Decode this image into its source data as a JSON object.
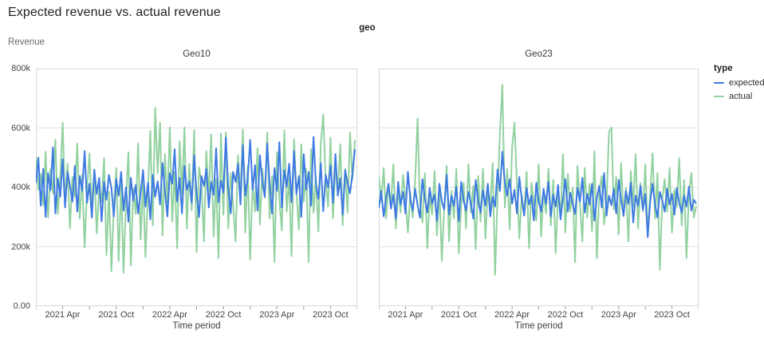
{
  "title": "Expected revenue vs. actual revenue",
  "facet_label": "geo",
  "y_axis": {
    "title": "Revenue",
    "tick_labels": [
      "0.00",
      "200k",
      "400k",
      "600k",
      "800k"
    ],
    "tick_values": [
      0,
      200,
      400,
      600,
      800
    ],
    "max": 800
  },
  "x_axis": {
    "title": "Time period",
    "labels": [
      "2021 Apr",
      "2021 Oct",
      "2022 Apr",
      "2022 Oct",
      "2023 Apr",
      "2023 Oct"
    ],
    "label_months": [
      3,
      9,
      15,
      21,
      27,
      33
    ],
    "tick_months": [
      0,
      3,
      6,
      9,
      12,
      15,
      18,
      21,
      24,
      27,
      30,
      33,
      36
    ],
    "domain_months": 36
  },
  "legend": {
    "title": "type",
    "items": [
      {
        "label": "expected",
        "color": "#3d7ae2"
      },
      {
        "label": "actual",
        "color": "#92d1a0"
      }
    ]
  },
  "chart_data": {
    "type": "line",
    "x_range": [
      "2021 Jan",
      "2024 Jan"
    ],
    "x_frequency": "weekly",
    "ylim": [
      0,
      800000
    ],
    "value_unit": "thousands",
    "grid": true,
    "legend_position": "right",
    "facets": [
      {
        "name": "Geo10",
        "series": [
          {
            "name": "expected",
            "color": "#3d7ae2",
            "values": [
              415,
              500,
              338,
              462,
              300,
              448,
              390,
              535,
              312,
              430,
              368,
              495,
              332,
              452,
              405,
              352,
              472,
              318,
              438,
              388,
              522,
              348,
              412,
              298,
              460,
              378,
              432,
              285,
              418,
              358,
              442,
              398,
              302,
              428,
              372,
              452,
              322,
              400,
              284,
              432,
              355,
              408,
              312,
              380,
              458,
              335,
              415,
              292,
              442,
              368,
              420,
              342,
              482,
              388,
              302,
              448,
              412,
              528,
              352,
              432,
              312,
              472,
              392,
              420,
              348,
              508,
              378,
              300,
              438,
              405,
              462,
              332,
              418,
              375,
              532,
              350,
              422,
              382,
              568,
              398,
              312,
              452,
              418,
              480,
              342,
              542,
              372,
              430,
              560,
              392,
              475,
              322,
              508,
              418,
              368,
              548,
              410,
              312,
              465,
              388,
              552,
              332,
              458,
              402,
              480,
              350,
              522,
              378,
              438,
              300,
              512,
              392,
              452,
              338,
              570,
              412,
              362,
              482,
              320,
              442,
              400,
              475,
              348,
              512,
              372,
              430,
              308,
              458,
              415,
              380,
              445,
              528
            ]
          },
          {
            "name": "actual",
            "color": "#92d1a0",
            "values": [
              505,
              392,
              445,
              340,
              520,
              298,
              462,
              380,
              560,
              310,
              428,
              618,
              352,
              480,
              262,
              435,
              368,
              548,
              295,
              442,
              198,
              388,
              515,
              328,
              458,
              245,
              402,
              352,
              498,
              172,
              385,
              118,
              332,
              465,
              152,
              415,
              112,
              362,
              518,
              138,
              395,
              310,
              548,
              225,
              418,
              165,
              382,
              590,
              272,
              668,
              448,
              618,
              238,
              512,
              345,
              602,
              285,
              452,
              195,
              555,
              378,
              602,
              262,
              478,
              322,
              592,
              182,
              468,
              415,
              218,
              522,
              365,
              578,
              235,
              428,
              162,
              582,
              308,
              585,
              262,
              448,
              342,
              218,
              508,
              365,
              595,
              248,
              472,
              158,
              418,
              318,
              532,
              275,
              462,
              365,
              585,
              295,
              438,
              148,
              518,
              358,
              255,
              592,
              318,
              432,
              168,
              562,
              382,
              258,
              545,
              352,
              462,
              148,
              528,
              315,
              435,
              252,
              548,
              645,
              422,
              335,
              568,
              295,
              475,
              382,
              545,
              272,
              462,
              315,
              585,
              425,
              560
            ]
          }
        ]
      },
      {
        "name": "Geo23",
        "series": [
          {
            "name": "expected",
            "color": "#3d7ae2",
            "values": [
              330,
              388,
              302,
              365,
              412,
              328,
              375,
              295,
              418,
              342,
              385,
              312,
              452,
              358,
              322,
              395,
              340,
              298,
              428,
              362,
              315,
              398,
              345,
              375,
              288,
              412,
              352,
              325,
              442,
              308,
              372,
              338,
              402,
              285,
              418,
              355,
              322,
              385,
              345,
              295,
              425,
              352,
              315,
              390,
              338,
              412,
              302,
              368,
              335,
              460,
              388,
              520,
              415,
              372,
              428,
              345,
              392,
              312,
              435,
              358,
              305,
              398,
              342,
              372,
              288,
              415,
              352,
              318,
              395,
              345,
              418,
              302,
              375,
              335,
              408,
              292,
              362,
              428,
              318,
              382,
              345,
              310,
              398,
              352,
              432,
              315,
              378,
              342,
              412,
              288,
              365,
              405,
              332,
              448,
              305,
              372,
              340,
              395,
              312,
              425,
              358,
              305,
              388,
              345,
              415,
              282,
              372,
              338,
              405,
              325,
              378,
              232,
              352,
              412,
              342,
              298,
              385,
              355,
              318,
              395,
              342,
              378,
              308,
              398,
              348,
              315,
              372,
              335,
              402,
              322,
              358,
              345
            ]
          },
          {
            "name": "actual",
            "color": "#92d1a0",
            "values": [
              438,
              352,
              465,
              295,
              408,
              338,
              478,
              262,
              395,
              315,
              442,
              358,
              248,
              385,
              298,
              425,
              632,
              345,
              282,
              448,
              195,
              372,
              308,
              455,
              238,
              398,
              152,
              335,
              472,
              218,
              388,
              295,
              462,
              178,
              342,
              415,
              262,
              478,
              315,
              405,
              192,
              438,
              285,
              462,
              228,
              395,
              335,
              482,
              105,
              368,
              585,
              745,
              332,
              462,
              258,
              532,
              618,
              412,
              228,
              375,
              308,
              452,
              195,
              415,
              348,
              288,
              478,
              235,
              392,
              312,
              462,
              272,
              425,
              178,
              385,
              295,
              512,
              248,
              445,
              318,
              398,
              148,
              472,
              342,
              218,
              465,
              298,
              412,
              252,
              522,
              162,
              388,
              438,
              275,
              352,
              585,
              602,
              325,
              435,
              242,
              482,
              302,
              398,
              218,
              455,
              335,
              512,
              262,
              415,
              318,
              478,
              235,
              382,
              515,
              295,
              448,
              122,
              362,
              428,
              318,
              465,
              248,
              392,
              335,
              498,
              272,
              425,
              162,
              382,
              448,
              298,
              338
            ]
          }
        ]
      }
    ]
  }
}
